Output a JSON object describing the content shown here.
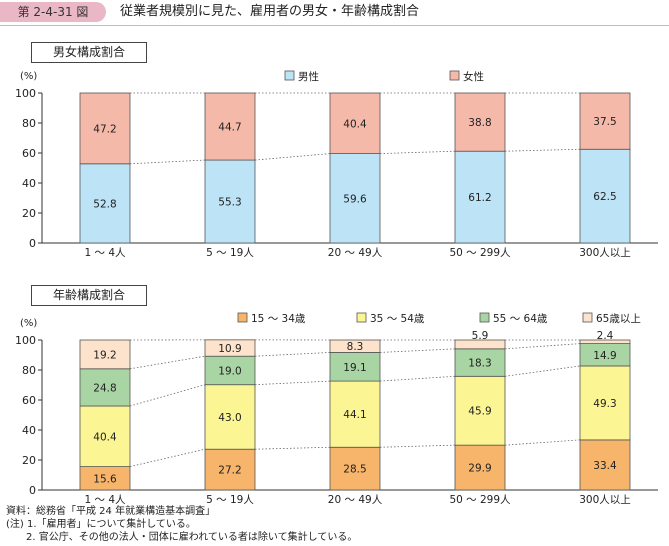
{
  "header": {
    "figure_no": "第 2-4-31 図",
    "title": "従業者規模別に見た、雇用者の男女・年齢構成割合"
  },
  "colors": {
    "male": "#bde3f6",
    "female": "#f5b9aa",
    "age_15_34": "#f6b56b",
    "age_35_54": "#fbf594",
    "age_55_64": "#a9d5a4",
    "age_65_over": "#fde3cb"
  },
  "panels": [
    {
      "label": "男女構成割合",
      "chart_data": {
        "type": "bar",
        "stacked": true,
        "ylabel": "(%)",
        "ylim": [
          0,
          100
        ],
        "yticks": [
          0,
          20,
          40,
          60,
          80,
          100
        ],
        "categories": [
          "1 〜 4人",
          "5 〜 19人",
          "20 〜 49人",
          "50 〜 299人",
          "300人以上"
        ],
        "series": [
          {
            "name": "男性",
            "color_key": "male",
            "values": [
              52.8,
              55.3,
              59.6,
              61.2,
              62.5
            ],
            "labels": [
              "52.8",
              "55.3",
              "59.6",
              "61.2",
              "62.5"
            ]
          },
          {
            "name": "女性",
            "color_key": "female",
            "values": [
              47.2,
              44.7,
              40.4,
              38.8,
              37.5
            ],
            "labels": [
              "47.2",
              "44.7",
              "40.4",
              "38.8",
              "37.5"
            ]
          }
        ],
        "legend": "top",
        "connector_lines": "dotted"
      }
    },
    {
      "label": "年齢構成割合",
      "chart_data": {
        "type": "bar",
        "stacked": true,
        "ylabel": "(%)",
        "ylim": [
          0,
          100
        ],
        "yticks": [
          0,
          20,
          40,
          60,
          80,
          100
        ],
        "categories": [
          "1 〜 4人",
          "5 〜 19人",
          "20 〜 49人",
          "50 〜 299人",
          "300人以上"
        ],
        "series": [
          {
            "name": "15 〜 34歳",
            "color_key": "age_15_34",
            "values": [
              15.6,
              27.2,
              28.5,
              29.9,
              33.4
            ],
            "labels": [
              "15.6",
              "27.2",
              "28.5",
              "29.9",
              "33.4"
            ]
          },
          {
            "name": "35 〜 54歳",
            "color_key": "age_35_54",
            "values": [
              40.4,
              43.0,
              44.1,
              45.9,
              49.3
            ],
            "labels": [
              "40.4",
              "43.0",
              "44.1",
              "45.9",
              "49.3"
            ]
          },
          {
            "name": "55 〜 64歳",
            "color_key": "age_55_64",
            "values": [
              24.8,
              19.0,
              19.1,
              18.3,
              14.9
            ],
            "labels": [
              "24.8",
              "19.0",
              "19.1",
              "18.3",
              "14.9"
            ]
          },
          {
            "name": "65歳以上",
            "color_key": "age_65_over",
            "values": [
              19.2,
              10.9,
              8.3,
              5.9,
              2.4
            ],
            "labels": [
              "19.2",
              "10.9",
              "8.3",
              "5.9",
              "2.4"
            ]
          }
        ],
        "legend": "top",
        "connector_lines": "dotted"
      }
    }
  ],
  "footnotes": {
    "source": "資料：総務省「平成 24 年就業構造基本調査」",
    "note1": "(注) 1.「雇用者」について集計している。",
    "note2": "2. 官公庁、その他の法人・団体に雇われている者は除いて集計している。"
  }
}
